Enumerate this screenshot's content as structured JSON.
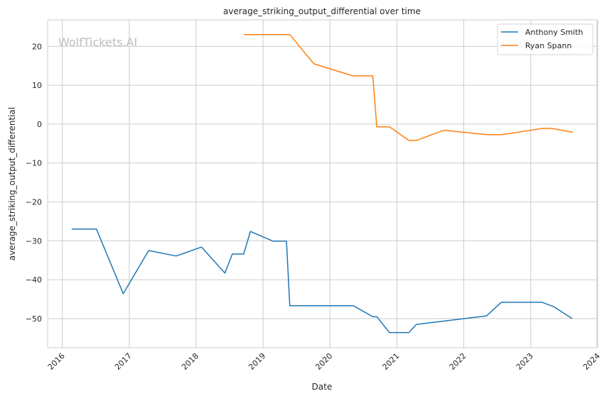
{
  "chart_data": {
    "type": "line",
    "title": "average_striking_output_differential over time",
    "xlabel": "Date",
    "ylabel": "average_striking_output_differential",
    "xlim": [
      2015.78,
      2023.99
    ],
    "ylim": [
      -57.5,
      26.8
    ],
    "xticks": [
      2016,
      2017,
      2018,
      2019,
      2020,
      2021,
      2022,
      2023,
      2024
    ],
    "xtick_labels": [
      "2016",
      "2017",
      "2018",
      "2019",
      "2020",
      "2021",
      "2022",
      "2023",
      "2024"
    ],
    "yticks": [
      20,
      10,
      0,
      -10,
      -20,
      -30,
      -40,
      -50
    ],
    "ytick_labels": [
      "20",
      "10",
      "0",
      "−10",
      "−20",
      "−30",
      "−40",
      "−50"
    ],
    "grid": true,
    "legend_position": "top-right",
    "watermark": "WolfTickets.AI",
    "series": [
      {
        "name": "Anthony Smith",
        "color": "#1f77b4",
        "x": [
          2016.14,
          2016.51,
          2016.91,
          2017.29,
          2017.7,
          2018.08,
          2018.43,
          2018.54,
          2018.71,
          2018.81,
          2019.15,
          2019.35,
          2019.4,
          2020.35,
          2020.64,
          2020.7,
          2020.89,
          2021.18,
          2021.29,
          2022.34,
          2022.56,
          2023.17,
          2023.34,
          2023.62
        ],
        "y": [
          -27.0,
          -27.0,
          -43.6,
          -32.5,
          -33.9,
          -31.6,
          -38.3,
          -33.4,
          -33.4,
          -27.6,
          -30.1,
          -30.1,
          -46.7,
          -46.7,
          -49.5,
          -49.5,
          -53.6,
          -53.6,
          -51.5,
          -49.3,
          -45.8,
          -45.8,
          -46.9,
          -50.0
        ]
      },
      {
        "name": "Ryan Spann",
        "color": "#ff7f0e",
        "x": [
          2018.71,
          2019.4,
          2019.76,
          2020.34,
          2020.64,
          2020.7,
          2020.89,
          2021.18,
          2021.29,
          2021.7,
          2022.35,
          2022.57,
          2023.18,
          2023.31,
          2023.63
        ],
        "y": [
          23.0,
          23.0,
          15.5,
          12.4,
          12.4,
          -0.7,
          -0.7,
          -4.2,
          -4.2,
          -1.6,
          -2.7,
          -2.7,
          -1.1,
          -1.1,
          -2.1
        ]
      }
    ]
  }
}
